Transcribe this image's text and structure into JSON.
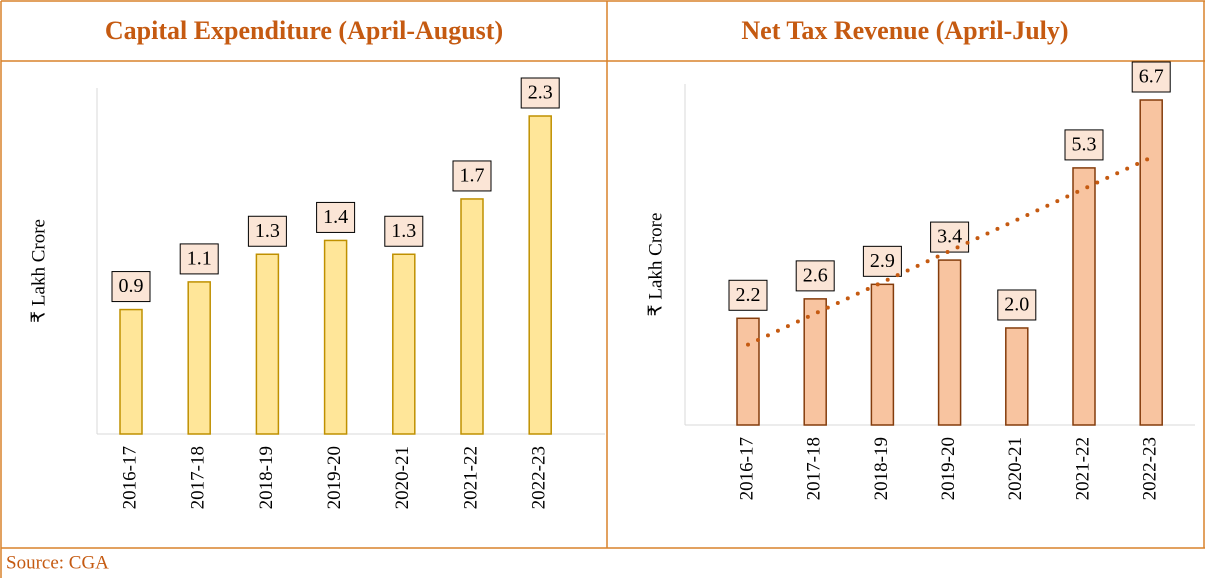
{
  "chart_data": [
    {
      "type": "bar",
      "title": "Capital Expenditure (April-August)",
      "y_label": "₹ Lakh Crore",
      "categories": [
        "2016-17",
        "2017-18",
        "2018-19",
        "2019-20",
        "2020-21",
        "2021-22",
        "2022-23"
      ],
      "values": [
        0.9,
        1.1,
        1.3,
        1.4,
        1.3,
        1.7,
        2.3
      ],
      "color": "#ffe699",
      "edge_color": "#bf9000"
    },
    {
      "type": "bar",
      "title": "Net Tax Revenue (April-July)",
      "y_label": "₹ Lakh Crore",
      "categories": [
        "2016-17",
        "2017-18",
        "2018-19",
        "2019-20",
        "2020-21",
        "2021-22",
        "2022-23"
      ],
      "values": [
        2.2,
        2.6,
        2.9,
        3.4,
        2.0,
        5.3,
        6.7
      ],
      "value_labels": [
        "2.2",
        "2.6",
        "2.9",
        "3.4",
        "2.0",
        "5.3",
        "6.7"
      ],
      "color": "#f8c4a0",
      "edge_color": "#843c0c",
      "trendline": true,
      "trendline_color": "#c55a11"
    }
  ],
  "source": "Source: CGA"
}
